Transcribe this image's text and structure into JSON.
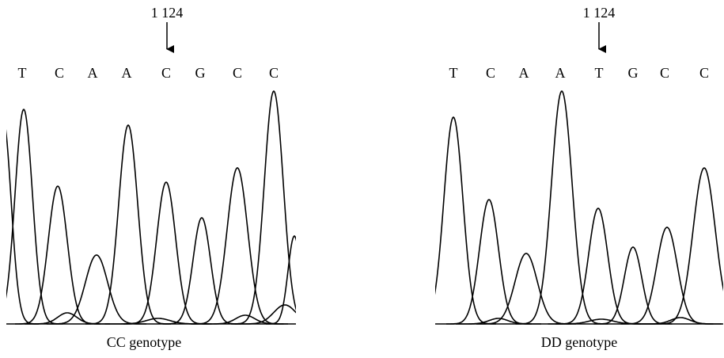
{
  "panels": [
    {
      "position": "1 124",
      "bases": [
        "T",
        "C",
        "A",
        "A",
        "C",
        "G",
        "C",
        "C"
      ],
      "caption": "CC genotype"
    },
    {
      "position": "1 124",
      "bases": [
        "T",
        "C",
        "A",
        "A",
        "T",
        "G",
        "C",
        "C"
      ],
      "caption": "DD genotype"
    }
  ]
}
